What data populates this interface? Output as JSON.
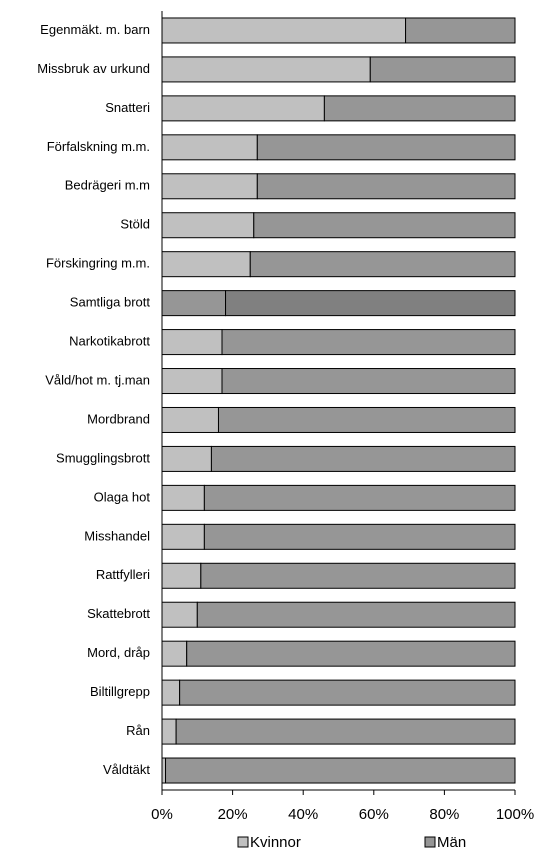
{
  "chart_data": {
    "type": "stacked-bar-horizontal",
    "categories": [
      "Egenmäkt. m. barn",
      "Missbruk av urkund",
      "Snatteri",
      "Förfalskning m.m.",
      "Bedrägeri m.m",
      "Stöld",
      "Förskingring m.m.",
      "Samtliga brott",
      "Narkotikabrott",
      "Våld/hot m. tj.man",
      "Mordbrand",
      "Smugglingsbrott",
      "Olaga hot",
      "Misshandel",
      "Rattfylleri",
      "Skattebrott",
      "Mord, dråp",
      "Biltillgrepp",
      "Rån",
      "Våldtäkt"
    ],
    "series": [
      {
        "name": "Kvinnor",
        "color": "#c0c0c0",
        "colors": [
          "#c0c0c0",
          "#c0c0c0",
          "#c0c0c0",
          "#c0c0c0",
          "#c0c0c0",
          "#c0c0c0",
          "#c0c0c0",
          "#969696",
          "#c0c0c0",
          "#c0c0c0",
          "#c0c0c0",
          "#c0c0c0",
          "#c0c0c0",
          "#c0c0c0",
          "#c0c0c0",
          "#c0c0c0",
          "#c0c0c0",
          "#c0c0c0",
          "#c0c0c0",
          "#c0c0c0"
        ],
        "values": [
          69,
          59,
          46,
          27,
          27,
          26,
          25,
          18,
          17,
          17,
          16,
          14,
          12,
          12,
          11,
          10,
          7,
          5,
          4,
          1
        ]
      },
      {
        "name": "Män",
        "color": "#969696",
        "colors": [
          "#969696",
          "#969696",
          "#969696",
          "#969696",
          "#969696",
          "#969696",
          "#969696",
          "#808080",
          "#969696",
          "#969696",
          "#969696",
          "#969696",
          "#969696",
          "#969696",
          "#969696",
          "#969696",
          "#969696",
          "#969696",
          "#969696",
          "#969696"
        ],
        "values": [
          31,
          41,
          54,
          73,
          73,
          74,
          75,
          82,
          83,
          83,
          84,
          86,
          88,
          88,
          89,
          90,
          93,
          95,
          96,
          99
        ]
      }
    ],
    "xlim": [
      0,
      100
    ],
    "xticks": [
      {
        "value": 0,
        "label": "0%"
      },
      {
        "value": 20,
        "label": "20%"
      },
      {
        "value": 40,
        "label": "40%"
      },
      {
        "value": 60,
        "label": "60%"
      },
      {
        "value": 80,
        "label": "80%"
      },
      {
        "value": 100,
        "label": "100%"
      }
    ],
    "legend": "bottom"
  }
}
